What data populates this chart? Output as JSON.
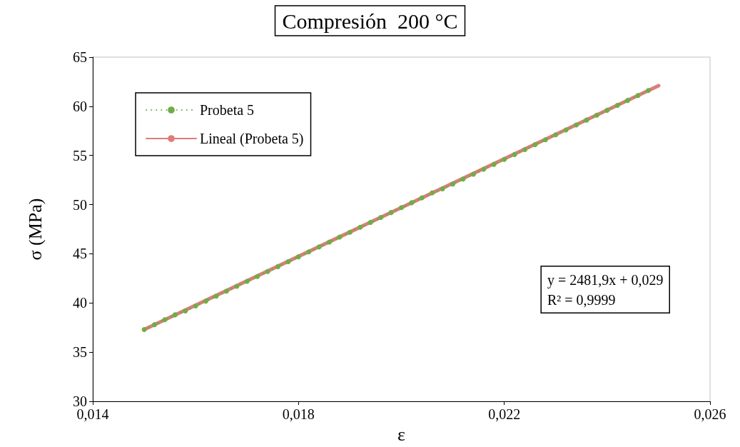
{
  "chart_data": {
    "type": "line",
    "title": "Compresión  200 °C",
    "xlabel": "ε",
    "ylabel": "σ (MPa)",
    "x": [
      0.015,
      0.0152,
      0.0154,
      0.0156,
      0.0158,
      0.016,
      0.0162,
      0.0164,
      0.0166,
      0.0168,
      0.017,
      0.0172,
      0.0174,
      0.0176,
      0.0178,
      0.018,
      0.0182,
      0.0184,
      0.0186,
      0.0188,
      0.019,
      0.0192,
      0.0194,
      0.0196,
      0.0198,
      0.02,
      0.0202,
      0.0204,
      0.0206,
      0.0208,
      0.021,
      0.0212,
      0.0214,
      0.0216,
      0.0218,
      0.022,
      0.0222,
      0.0224,
      0.0226,
      0.0228,
      0.023,
      0.0232,
      0.0234,
      0.0236,
      0.0238,
      0.024,
      0.0242,
      0.0244,
      0.0246,
      0.0248
    ],
    "series": [
      {
        "name": "Probeta 5",
        "color": "#70ad47",
        "line_style": "dotted",
        "marker": "circle",
        "values": [
          37.3,
          37.8,
          38.3,
          38.8,
          39.2,
          39.7,
          40.2,
          40.7,
          41.2,
          41.7,
          42.2,
          42.7,
          43.2,
          43.7,
          44.2,
          44.7,
          45.2,
          45.7,
          46.2,
          46.7,
          47.2,
          47.7,
          48.2,
          48.7,
          49.2,
          49.7,
          50.2,
          50.7,
          51.2,
          51.6,
          52.1,
          52.6,
          53.1,
          53.6,
          54.1,
          54.6,
          55.1,
          55.6,
          56.1,
          56.6,
          57.1,
          57.6,
          58.1,
          58.6,
          59.1,
          59.6,
          60.1,
          60.6,
          61.1,
          61.6
        ]
      },
      {
        "name": "Lineal (Probeta 5)",
        "color": "#e07b7b",
        "line_style": "solid",
        "x": [
          0.015,
          0.025
        ],
        "values": [
          37.3,
          62.1
        ]
      }
    ],
    "xlim": [
      0.014,
      0.026
    ],
    "xticks": [
      {
        "value": 0.014,
        "label": "0,014"
      },
      {
        "value": 0.018,
        "label": "0,018"
      },
      {
        "value": 0.022,
        "label": "0,022"
      },
      {
        "value": 0.026,
        "label": "0,026"
      }
    ],
    "ylim": [
      30,
      65
    ],
    "yticks": [
      30,
      35,
      40,
      45,
      50,
      55,
      60,
      65
    ],
    "marker": "none",
    "grid": false,
    "legend": "top left",
    "annotations": [
      "y = 2481,9x + 0,029",
      "R² = 0,9999"
    ]
  }
}
